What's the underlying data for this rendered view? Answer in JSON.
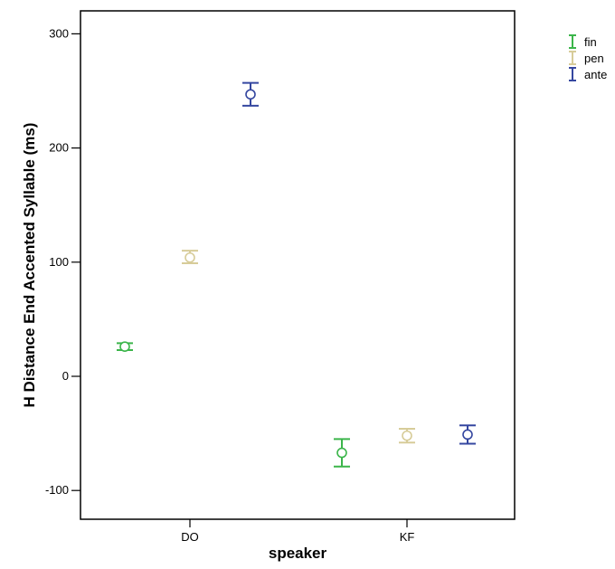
{
  "chart_data": {
    "type": "scatter",
    "subtype": "error-bar",
    "xlabel": "speaker",
    "ylabel": "H Distance End Accented Syllable (ms)",
    "categories": [
      "DO",
      "KF"
    ],
    "ylim": [
      -125,
      320
    ],
    "yticks": [
      -100,
      0,
      100,
      200,
      300
    ],
    "grid": false,
    "legend_position": "top-right",
    "series": [
      {
        "name": "fin",
        "color": "#3bb54a",
        "points": [
          {
            "category": "DO",
            "mean": 26,
            "lower": 23,
            "upper": 29
          },
          {
            "category": "KF",
            "mean": -67,
            "lower": -79,
            "upper": -55
          }
        ]
      },
      {
        "name": "pen",
        "color": "#d7cc99",
        "points": [
          {
            "category": "DO",
            "mean": 104,
            "lower": 99,
            "upper": 110
          },
          {
            "category": "KF",
            "mean": -52,
            "lower": -58,
            "upper": -46
          }
        ]
      },
      {
        "name": "ante",
        "color": "#3547a0",
        "points": [
          {
            "category": "DO",
            "mean": 247,
            "lower": 237,
            "upper": 257
          },
          {
            "category": "KF",
            "mean": -51,
            "lower": -59,
            "upper": -43
          }
        ]
      }
    ]
  }
}
